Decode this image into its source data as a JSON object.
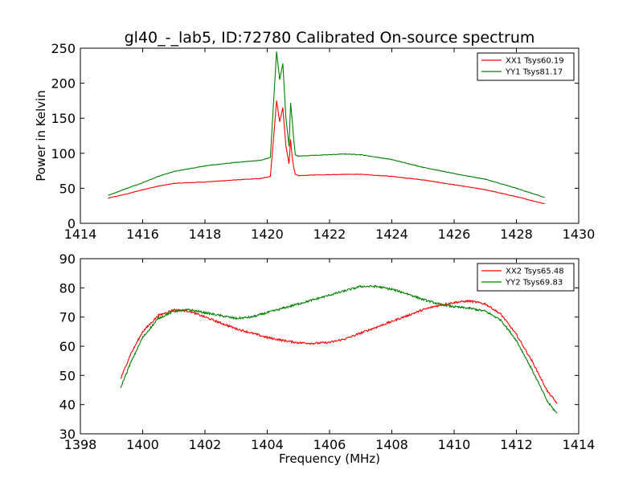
{
  "chart_data": [
    {
      "type": "line",
      "title": "gl40_-_lab5, ID:72780 Calibrated On-source spectrum",
      "xlabel": "",
      "ylabel": "Power in Kelvin",
      "xlim": [
        1414,
        1430
      ],
      "ylim": [
        0,
        250
      ],
      "xticks": [
        1414,
        1416,
        1418,
        1420,
        1422,
        1424,
        1426,
        1428,
        1430
      ],
      "yticks": [
        0,
        50,
        100,
        150,
        200,
        250
      ],
      "legend_position": "top-right",
      "series": [
        {
          "name": "XX1 Tsys60.19",
          "color": "#ff0000",
          "x": [
            1414.9,
            1415.5,
            1416.0,
            1416.5,
            1417.0,
            1418.0,
            1419.0,
            1419.8,
            1420.1,
            1420.2,
            1420.3,
            1420.4,
            1420.5,
            1420.6,
            1420.7,
            1420.75,
            1420.8,
            1420.85,
            1420.9,
            1421.0,
            1421.5,
            1422.5,
            1423.0,
            1424.0,
            1425.0,
            1426.0,
            1427.0,
            1428.0,
            1428.9
          ],
          "y": [
            36,
            42,
            48,
            53,
            57,
            59,
            62,
            64,
            67,
            120,
            175,
            145,
            165,
            110,
            85,
            120,
            95,
            80,
            70,
            68,
            69,
            70,
            70,
            67,
            62,
            55,
            48,
            38,
            28
          ]
        },
        {
          "name": "YY1 Tsys81.17",
          "color": "#008000",
          "x": [
            1414.9,
            1415.5,
            1416.0,
            1416.5,
            1417.0,
            1418.0,
            1419.0,
            1419.8,
            1420.1,
            1420.2,
            1420.3,
            1420.4,
            1420.5,
            1420.6,
            1420.7,
            1420.75,
            1420.8,
            1420.85,
            1420.9,
            1421.0,
            1421.5,
            1422.5,
            1423.0,
            1424.0,
            1425.0,
            1426.0,
            1427.0,
            1428.0,
            1428.9
          ],
          "y": [
            40,
            50,
            58,
            67,
            74,
            82,
            87,
            90,
            94,
            170,
            245,
            205,
            228,
            150,
            110,
            172,
            148,
            120,
            98,
            96,
            97,
            99,
            98,
            91,
            80,
            71,
            63,
            50,
            37
          ]
        }
      ]
    },
    {
      "type": "line",
      "title": "",
      "xlabel": "Frequency (MHz)",
      "ylabel": "",
      "xlim": [
        1398,
        1414
      ],
      "ylim": [
        30,
        90
      ],
      "xticks": [
        1398,
        1400,
        1402,
        1404,
        1406,
        1408,
        1410,
        1412,
        1414
      ],
      "yticks": [
        30,
        40,
        50,
        60,
        70,
        80,
        90
      ],
      "legend_position": "top-right",
      "series": [
        {
          "name": "XX2 Tsys65.48",
          "color": "#ff0000",
          "x": [
            1399.3,
            1399.6,
            1400.0,
            1400.5,
            1401.0,
            1401.5,
            1402.0,
            1402.5,
            1403.0,
            1403.5,
            1404.0,
            1404.5,
            1405.0,
            1405.5,
            1406.0,
            1406.5,
            1407.0,
            1407.5,
            1408.0,
            1408.5,
            1409.0,
            1409.5,
            1410.0,
            1410.5,
            1411.0,
            1411.5,
            1412.0,
            1412.5,
            1413.0,
            1413.3
          ],
          "y": [
            49,
            57,
            65,
            70.5,
            72.5,
            72,
            70,
            68,
            66,
            64.5,
            63,
            62,
            61.2,
            61,
            61.3,
            62.5,
            64.5,
            66.5,
            68.5,
            70.5,
            72.5,
            74,
            75,
            75.5,
            74.5,
            71,
            64,
            55,
            44.5,
            40.5
          ]
        },
        {
          "name": "YY2 Tsys69.83",
          "color": "#008000",
          "x": [
            1399.3,
            1399.6,
            1400.0,
            1400.5,
            1401.0,
            1401.5,
            1402.0,
            1402.5,
            1403.0,
            1403.5,
            1404.0,
            1404.5,
            1405.0,
            1405.5,
            1406.0,
            1406.5,
            1407.0,
            1407.5,
            1408.0,
            1408.5,
            1409.0,
            1409.5,
            1410.0,
            1410.5,
            1411.0,
            1411.5,
            1412.0,
            1412.5,
            1413.0,
            1413.3
          ],
          "y": [
            46,
            54,
            63,
            69.5,
            72,
            72.5,
            71.5,
            70.5,
            69.5,
            70,
            71.5,
            73,
            74.5,
            76,
            77.5,
            79,
            80.5,
            80.5,
            79.5,
            78,
            76,
            74.5,
            73.5,
            73,
            72,
            69,
            62,
            52,
            41,
            37
          ]
        }
      ]
    }
  ]
}
